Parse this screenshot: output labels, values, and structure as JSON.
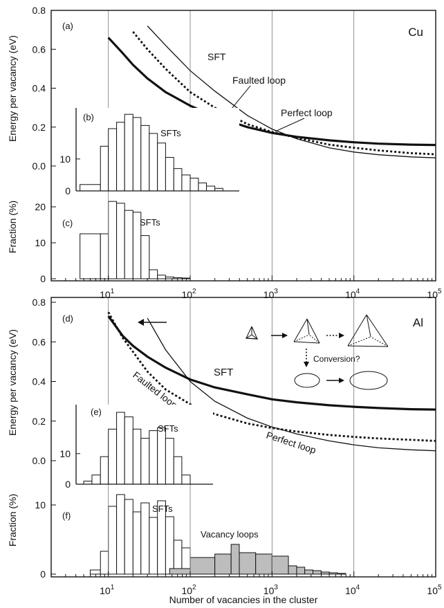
{
  "chart_data": [
    {
      "id": "a",
      "type": "line",
      "panel_label": "(a)",
      "material_label": "Cu",
      "ylabel": "Energy per vacancy (eV)",
      "xscale": "log",
      "xlim": [
        2,
        100000
      ],
      "ylim": [
        0,
        0.8
      ],
      "yticks": [
        "0.0",
        "0.2",
        "0.4",
        "0.6",
        "0.8"
      ],
      "grid": true,
      "series": [
        {
          "name": "SFT",
          "style": "thin",
          "x": [
            30,
            50,
            100,
            200,
            500,
            1000,
            2000,
            5000,
            10000,
            20000,
            50000,
            100000
          ],
          "y": [
            0.72,
            0.62,
            0.49,
            0.385,
            0.26,
            0.19,
            0.14,
            0.093,
            0.072,
            0.058,
            0.047,
            0.042
          ]
        },
        {
          "name": "Faulted loop",
          "style": "dotted",
          "x": [
            20,
            30,
            50,
            100,
            200,
            500,
            1000,
            2000,
            5000,
            10000,
            20000,
            50000,
            100000
          ],
          "y": [
            0.69,
            0.6,
            0.5,
            0.38,
            0.3,
            0.215,
            0.175,
            0.145,
            0.11,
            0.094,
            0.08,
            0.066,
            0.06
          ]
        },
        {
          "name": "Perfect loop",
          "style": "thick",
          "x": [
            10,
            15,
            20,
            30,
            50,
            100,
            200,
            500,
            1000,
            2000,
            5000,
            10000,
            20000,
            50000,
            100000
          ],
          "y": [
            0.66,
            0.58,
            0.52,
            0.45,
            0.38,
            0.31,
            0.255,
            0.2,
            0.17,
            0.15,
            0.132,
            0.122,
            0.115,
            0.11,
            0.108
          ]
        }
      ],
      "annotations": [
        {
          "text": "SFT",
          "x": 60,
          "y": 0.5
        },
        {
          "text": "Faulted loop",
          "x": 250,
          "y": 0.4
        },
        {
          "text": "Perfect loop",
          "x": 1800,
          "y": 0.25
        }
      ]
    },
    {
      "id": "b",
      "type": "bar",
      "panel_label": "(b)",
      "annotation": "SFTs",
      "yticks": [
        "0",
        "10"
      ],
      "ylim": [
        0,
        26
      ],
      "bin_edges": [
        4.5,
        8,
        10,
        12.6,
        15.8,
        20,
        25,
        31.6,
        39.8,
        50,
        63,
        79,
        100,
        126,
        158,
        200,
        251
      ],
      "values": [
        2,
        14,
        19.5,
        21.5,
        24,
        23,
        20.5,
        18,
        15,
        10.5,
        7,
        5,
        4,
        2.5,
        1.5,
        0.8
      ]
    },
    {
      "id": "c",
      "type": "bar",
      "panel_label": "(c)",
      "annotation": "SFTs",
      "ylabel": "Fraction (%)",
      "xlabel": "",
      "xscale": "log",
      "xlim": [
        2,
        100000
      ],
      "ylim": [
        0,
        25
      ],
      "yticks": [
        "0",
        "10",
        "20"
      ],
      "xtick_values": [
        10,
        100,
        1000,
        10000,
        100000
      ],
      "xtick_labels": [
        [
          "10",
          "1"
        ],
        [
          "10",
          "2"
        ],
        [
          "10",
          "3"
        ],
        [
          "10",
          "4"
        ],
        [
          "10",
          "5"
        ]
      ],
      "bin_edges": [
        4.5,
        8,
        10,
        12.6,
        15.8,
        20,
        25,
        31.6,
        39.8,
        50,
        63,
        79,
        100
      ],
      "values": [
        12.5,
        12.5,
        21.5,
        21,
        19,
        18.5,
        12,
        2.5,
        1,
        0.5,
        0.3,
        0.2
      ]
    },
    {
      "id": "d",
      "type": "line",
      "panel_label": "(d)",
      "material_label": "Al",
      "ylabel": "Energy per vacancy (eV)",
      "xscale": "log",
      "xlim": [
        2,
        100000
      ],
      "ylim": [
        0,
        0.8
      ],
      "yticks": [
        "0.0",
        "0.2",
        "0.4",
        "0.6",
        "0.8"
      ],
      "grid": true,
      "series": [
        {
          "name": "SFT",
          "style": "thick",
          "x": [
            10,
            15,
            20,
            30,
            50,
            100,
            200,
            500,
            1000,
            2000,
            5000,
            10000,
            20000,
            50000,
            100000
          ],
          "y": [
            0.73,
            0.63,
            0.58,
            0.525,
            0.47,
            0.41,
            0.37,
            0.335,
            0.31,
            0.295,
            0.28,
            0.272,
            0.266,
            0.26,
            0.258
          ]
        },
        {
          "name": "Faulted loop",
          "style": "dotted",
          "x": [
            10,
            15,
            20,
            30,
            50,
            100,
            200,
            500,
            1000,
            2000,
            5000,
            10000,
            20000,
            50000,
            100000
          ],
          "y": [
            0.75,
            0.62,
            0.55,
            0.45,
            0.36,
            0.285,
            0.235,
            0.188,
            0.165,
            0.147,
            0.13,
            0.12,
            0.112,
            0.105,
            0.1
          ]
        },
        {
          "name": "Perfect loop",
          "style": "thin",
          "x": [
            30,
            50,
            100,
            200,
            500,
            1000,
            2000,
            5000,
            10000,
            20000,
            50000,
            100000
          ],
          "y": [
            0.72,
            0.56,
            0.4,
            0.3,
            0.215,
            0.17,
            0.135,
            0.1,
            0.08,
            0.065,
            0.055,
            0.05
          ]
        }
      ],
      "annotations": [
        {
          "text": "SFT",
          "x": 280,
          "y": 0.47
        },
        {
          "text": "Faulted loop",
          "x": 11,
          "y": 0.34
        },
        {
          "text": "Perfect loop",
          "x": 500,
          "y": 0.16
        },
        {
          "text": "Conversion?",
          "x": 900,
          "y": 0.56
        }
      ]
    },
    {
      "id": "e",
      "type": "bar",
      "panel_label": "(e)",
      "annotation": "SFTs",
      "yticks": [
        "0",
        "10"
      ],
      "ylim": [
        0,
        26
      ],
      "bin_edges": [
        5,
        6.3,
        8,
        10,
        12.6,
        15.8,
        20,
        25,
        31.6,
        39.8,
        50,
        63,
        79,
        100
      ],
      "values": [
        1,
        3,
        9,
        18,
        23.5,
        22,
        18,
        15,
        17.5,
        18.5,
        15,
        9,
        3
      ]
    },
    {
      "id": "f",
      "type": "bar",
      "panel_label": "(f)",
      "annotations": [
        "SFTs",
        "Vacancy loops"
      ],
      "ylabel": "Fraction (%)",
      "xlabel": "Number of vacancies in the cluster",
      "xscale": "log",
      "xlim": [
        2,
        100000
      ],
      "ylim": [
        0,
        14
      ],
      "yticks": [
        "0",
        "10"
      ],
      "xtick_values": [
        10,
        100,
        1000,
        10000,
        100000
      ],
      "xtick_labels": [
        [
          "10",
          "1"
        ],
        [
          "10",
          "2"
        ],
        [
          "10",
          "3"
        ],
        [
          "10",
          "4"
        ],
        [
          "10",
          "5"
        ]
      ],
      "bin_edges": [
        6,
        8,
        10,
        12.6,
        15.8,
        20,
        25,
        31.6,
        39.8,
        50,
        63,
        79,
        100
      ],
      "values": [
        0.6,
        3.3,
        9.8,
        11.5,
        10.8,
        9,
        10.3,
        8.2,
        10.6,
        8.3,
        4.9,
        3.8
      ],
      "loop_bin_edges": [
        56,
        100,
        200,
        316,
        398,
        631,
        1000,
        1585,
        2000,
        2512,
        3162,
        3981,
        5012,
        6310,
        7943
      ],
      "loop_values": [
        0.8,
        2.4,
        2.9,
        4.3,
        3.1,
        2.9,
        2.6,
        1.2,
        1,
        0.6,
        0.5,
        0.3,
        0.2,
        0.1
      ]
    }
  ]
}
